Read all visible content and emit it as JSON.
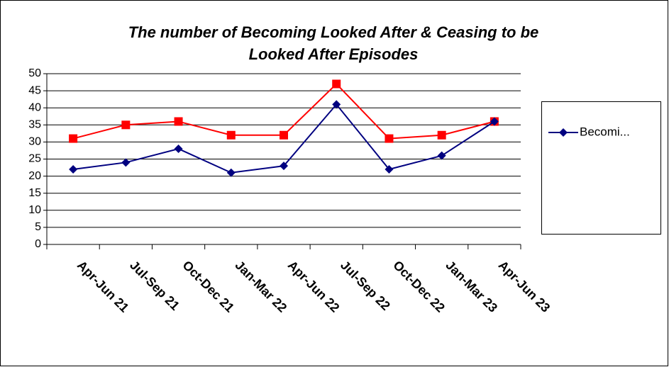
{
  "chart_data": {
    "type": "line",
    "title": [
      "The number of Becoming Looked After & Ceasing to be",
      "Looked After Episodes"
    ],
    "categories": [
      "Apr-Jun 21",
      "Jul-Sep 21",
      "Oct-Dec 21",
      "Jan-Mar 22",
      "Apr-Jun 22",
      "Jul-Sep 22",
      "Oct-Dec 22",
      "Jan-Mar 23",
      "Apr-Jun 23"
    ],
    "series": [
      {
        "name": "Becomi...",
        "color": "#000080",
        "marker": "diamond",
        "values": [
          22,
          24,
          28,
          21,
          23,
          41,
          22,
          26,
          36
        ]
      },
      {
        "color": "#ff0000",
        "marker": "square",
        "values": [
          31,
          35,
          36,
          32,
          32,
          47,
          31,
          32,
          36
        ]
      }
    ],
    "ylim": [
      0,
      50
    ],
    "yticks": [
      0,
      5,
      10,
      15,
      20,
      25,
      30,
      35,
      40,
      45,
      50
    ],
    "grid": true,
    "legend": "right"
  }
}
